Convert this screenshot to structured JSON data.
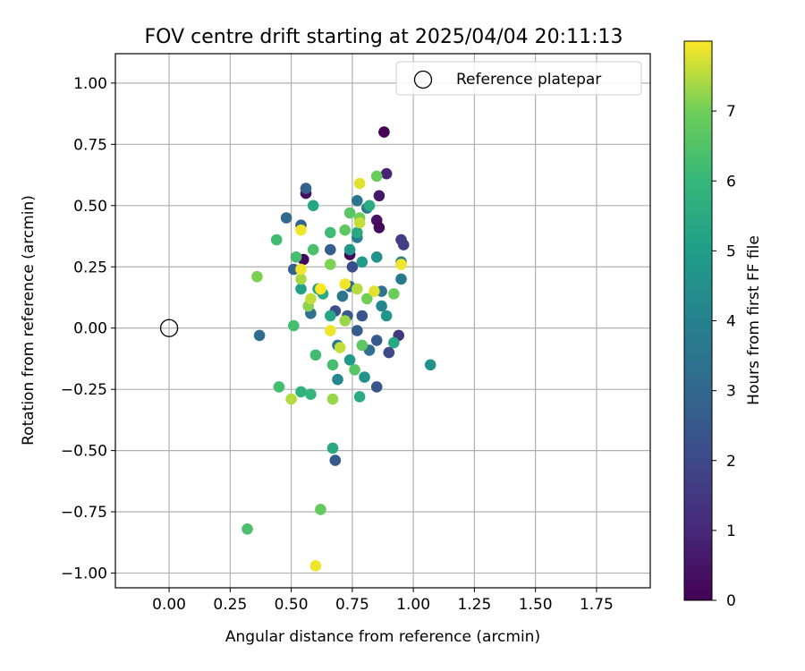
{
  "chart_data": {
    "type": "scatter",
    "title": "FOV centre drift starting at 2025/04/04 20:11:13",
    "xlabel": "Angular distance from reference (arcmin)",
    "ylabel": "Rotation from reference (arcmin)",
    "xlim": [
      -0.22,
      1.97
    ],
    "ylim": [
      -1.06,
      1.12
    ],
    "xticks": [
      0.0,
      0.25,
      0.5,
      0.75,
      1.0,
      1.25,
      1.5,
      1.75
    ],
    "xtick_labels": [
      "0.00",
      "0.25",
      "0.50",
      "0.75",
      "1.00",
      "1.25",
      "1.50",
      "1.75"
    ],
    "yticks": [
      -1.0,
      -0.75,
      -0.5,
      -0.25,
      0.0,
      0.25,
      0.5,
      0.75,
      1.0
    ],
    "ytick_labels": [
      "−1.00",
      "−0.75",
      "−0.50",
      "−0.25",
      "0.00",
      "0.25",
      "0.50",
      "0.75",
      "1.00"
    ],
    "grid": true,
    "legend": {
      "placement": "top-right",
      "entries": [
        {
          "label": "Reference platepar",
          "marker": "open-circle"
        }
      ]
    },
    "reference_point": {
      "x": 0.0,
      "y": 0.0
    },
    "colorbar": {
      "label": "Hours from first FF file",
      "range": [
        0,
        8
      ],
      "ticks": [
        0,
        1,
        2,
        3,
        4,
        5,
        6,
        7
      ],
      "colormap": "viridis"
    },
    "points": [
      {
        "x": 0.88,
        "y": 0.8,
        "h": 0.0
      },
      {
        "x": 0.89,
        "y": 0.63,
        "h": 0.9
      },
      {
        "x": 0.56,
        "y": 0.55,
        "h": 0.3
      },
      {
        "x": 0.86,
        "y": 0.54,
        "h": 0.6
      },
      {
        "x": 0.56,
        "y": 0.57,
        "h": 2.8
      },
      {
        "x": 0.85,
        "y": 0.44,
        "h": 0.4
      },
      {
        "x": 0.86,
        "y": 0.41,
        "h": 0.2
      },
      {
        "x": 0.74,
        "y": 0.3,
        "h": 0.1
      },
      {
        "x": 0.55,
        "y": 0.28,
        "h": 0.2
      },
      {
        "x": 0.95,
        "y": 0.36,
        "h": 1.6
      },
      {
        "x": 0.96,
        "y": 0.34,
        "h": 1.7
      },
      {
        "x": 0.75,
        "y": 0.25,
        "h": 2.1
      },
      {
        "x": 0.94,
        "y": -0.03,
        "h": 1.4
      },
      {
        "x": 0.9,
        "y": -0.1,
        "h": 2.0
      },
      {
        "x": 0.85,
        "y": -0.05,
        "h": 2.6
      },
      {
        "x": 0.85,
        "y": -0.24,
        "h": 2.4
      },
      {
        "x": 0.73,
        "y": 0.05,
        "h": 2.5
      },
      {
        "x": 0.68,
        "y": 0.07,
        "h": 2.2
      },
      {
        "x": 0.79,
        "y": 0.05,
        "h": 2.4
      },
      {
        "x": 0.77,
        "y": -0.01,
        "h": 2.6
      },
      {
        "x": 0.68,
        "y": -0.54,
        "h": 2.5
      },
      {
        "x": 0.37,
        "y": -0.03,
        "h": 3.2
      },
      {
        "x": 0.48,
        "y": 0.45,
        "h": 3.0
      },
      {
        "x": 0.54,
        "y": 0.42,
        "h": 2.9
      },
      {
        "x": 0.51,
        "y": 0.24,
        "h": 2.8
      },
      {
        "x": 0.66,
        "y": 0.32,
        "h": 2.7
      },
      {
        "x": 0.58,
        "y": 0.06,
        "h": 3.3
      },
      {
        "x": 0.71,
        "y": 0.13,
        "h": 3.5
      },
      {
        "x": 0.74,
        "y": 0.17,
        "h": 3.2
      },
      {
        "x": 0.77,
        "y": 0.52,
        "h": 3.5
      },
      {
        "x": 0.77,
        "y": 0.37,
        "h": 3.8
      },
      {
        "x": 0.81,
        "y": 0.49,
        "h": 3.6
      },
      {
        "x": 0.87,
        "y": 0.15,
        "h": 3.4
      },
      {
        "x": 0.95,
        "y": 0.2,
        "h": 3.6
      },
      {
        "x": 0.95,
        "y": 0.27,
        "h": 3.9
      },
      {
        "x": 0.87,
        "y": 0.09,
        "h": 4.1
      },
      {
        "x": 0.82,
        "y": -0.09,
        "h": 3.3
      },
      {
        "x": 0.69,
        "y": -0.07,
        "h": 3.7
      },
      {
        "x": 0.69,
        "y": -0.21,
        "h": 4.2
      },
      {
        "x": 1.07,
        "y": -0.15,
        "h": 4.6
      },
      {
        "x": 0.8,
        "y": -0.2,
        "h": 4.6
      },
      {
        "x": 0.74,
        "y": -0.13,
        "h": 4.8
      },
      {
        "x": 0.79,
        "y": 0.27,
        "h": 4.9
      },
      {
        "x": 0.74,
        "y": 0.32,
        "h": 4.8
      },
      {
        "x": 0.85,
        "y": 0.29,
        "h": 4.6
      },
      {
        "x": 0.89,
        "y": 0.05,
        "h": 4.7
      },
      {
        "x": 0.54,
        "y": 0.16,
        "h": 5.1
      },
      {
        "x": 0.61,
        "y": 0.16,
        "h": 5.2
      },
      {
        "x": 0.63,
        "y": 0.14,
        "h": 5.5
      },
      {
        "x": 0.59,
        "y": 0.5,
        "h": 5.3
      },
      {
        "x": 0.77,
        "y": 0.39,
        "h": 5.4
      },
      {
        "x": 0.82,
        "y": 0.5,
        "h": 5.5
      },
      {
        "x": 0.66,
        "y": 0.05,
        "h": 5.3
      },
      {
        "x": 0.67,
        "y": -0.49,
        "h": 5.4
      },
      {
        "x": 0.78,
        "y": -0.28,
        "h": 5.5
      },
      {
        "x": 0.92,
        "y": -0.06,
        "h": 5.4
      },
      {
        "x": 0.54,
        "y": -0.26,
        "h": 5.8
      },
      {
        "x": 0.58,
        "y": -0.27,
        "h": 5.9
      },
      {
        "x": 0.45,
        "y": -0.24,
        "h": 6.3
      },
      {
        "x": 0.44,
        "y": 0.36,
        "h": 6.2
      },
      {
        "x": 0.52,
        "y": 0.29,
        "h": 6.3
      },
      {
        "x": 0.59,
        "y": 0.32,
        "h": 6.4
      },
      {
        "x": 0.66,
        "y": 0.39,
        "h": 6.2
      },
      {
        "x": 0.74,
        "y": 0.47,
        "h": 6.6
      },
      {
        "x": 0.72,
        "y": 0.4,
        "h": 6.7
      },
      {
        "x": 0.51,
        "y": 0.01,
        "h": 6.3
      },
      {
        "x": 0.6,
        "y": -0.11,
        "h": 6.2
      },
      {
        "x": 0.67,
        "y": -0.15,
        "h": 6.3
      },
      {
        "x": 0.76,
        "y": -0.17,
        "h": 6.6
      },
      {
        "x": 0.79,
        "y": -0.07,
        "h": 6.7
      },
      {
        "x": 0.32,
        "y": -0.82,
        "h": 6.4
      },
      {
        "x": 0.62,
        "y": -0.74,
        "h": 6.8
      },
      {
        "x": 0.78,
        "y": 0.45,
        "h": 7.0
      },
      {
        "x": 0.85,
        "y": 0.62,
        "h": 6.9
      },
      {
        "x": 0.36,
        "y": 0.21,
        "h": 7.1
      },
      {
        "x": 0.57,
        "y": 0.09,
        "h": 7.2
      },
      {
        "x": 0.66,
        "y": 0.26,
        "h": 7.1
      },
      {
        "x": 0.72,
        "y": 0.03,
        "h": 7.3
      },
      {
        "x": 0.81,
        "y": 0.12,
        "h": 7.0
      },
      {
        "x": 0.92,
        "y": 0.14,
        "h": 6.9
      },
      {
        "x": 0.67,
        "y": -0.29,
        "h": 7.3
      },
      {
        "x": 0.5,
        "y": -0.29,
        "h": 7.5
      },
      {
        "x": 0.77,
        "y": 0.16,
        "h": 7.5
      },
      {
        "x": 0.54,
        "y": 0.2,
        "h": 7.4
      },
      {
        "x": 0.58,
        "y": 0.12,
        "h": 7.6
      },
      {
        "x": 0.7,
        "y": -0.08,
        "h": 7.6
      },
      {
        "x": 0.54,
        "y": 0.4,
        "h": 7.9
      },
      {
        "x": 0.54,
        "y": 0.24,
        "h": 7.9
      },
      {
        "x": 0.62,
        "y": 0.16,
        "h": 8.0
      },
      {
        "x": 0.72,
        "y": 0.18,
        "h": 7.9
      },
      {
        "x": 0.78,
        "y": 0.59,
        "h": 7.8
      },
      {
        "x": 0.78,
        "y": 0.43,
        "h": 7.6
      },
      {
        "x": 0.84,
        "y": 0.15,
        "h": 7.8
      },
      {
        "x": 0.95,
        "y": 0.26,
        "h": 7.9
      },
      {
        "x": 0.66,
        "y": -0.01,
        "h": 7.9
      },
      {
        "x": 0.6,
        "y": -0.97,
        "h": 7.9
      }
    ]
  }
}
